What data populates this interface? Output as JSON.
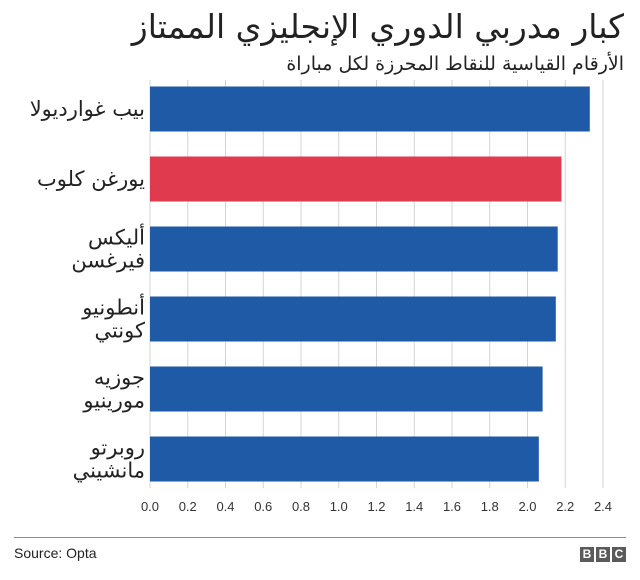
{
  "header": {
    "title": "كبار مدربي الدوري الإنجليزي الممتاز",
    "subtitle": "الأرقام القياسية للنقاط المحرزة لكل مباراة"
  },
  "chart_data": {
    "type": "bar",
    "orientation": "horizontal",
    "title": "كبار مدربي الدوري الإنجليزي الممتاز",
    "subtitle": "الأرقام القياسية للنقاط المحرزة لكل مباراة",
    "categories": [
      [
        "بيب غوارديولا"
      ],
      [
        "يورغن كلوب"
      ],
      [
        "أليكس",
        "فيرغسن"
      ],
      [
        "أنطونيو",
        "كونتي"
      ],
      [
        "جوزيه",
        "مورينيو"
      ],
      [
        "روبرتو",
        "مانشيني"
      ]
    ],
    "values": [
      2.33,
      2.18,
      2.16,
      2.15,
      2.08,
      2.06
    ],
    "bar_colors": [
      "#1f5aa6",
      "#e03a4e",
      "#1f5aa6",
      "#1f5aa6",
      "#1f5aa6",
      "#1f5aa6"
    ],
    "xlim": [
      0,
      2.4
    ],
    "xticks": [
      "0.0",
      "0.2",
      "0.4",
      "0.6",
      "0.8",
      "1.0",
      "1.2",
      "1.4",
      "1.6",
      "1.8",
      "2.0",
      "2.2",
      "2.4"
    ],
    "grid": "vertical",
    "xlabel": "",
    "ylabel": ""
  },
  "footer": {
    "source": "Source: Opta",
    "logo_letters": [
      "B",
      "B",
      "C"
    ]
  }
}
